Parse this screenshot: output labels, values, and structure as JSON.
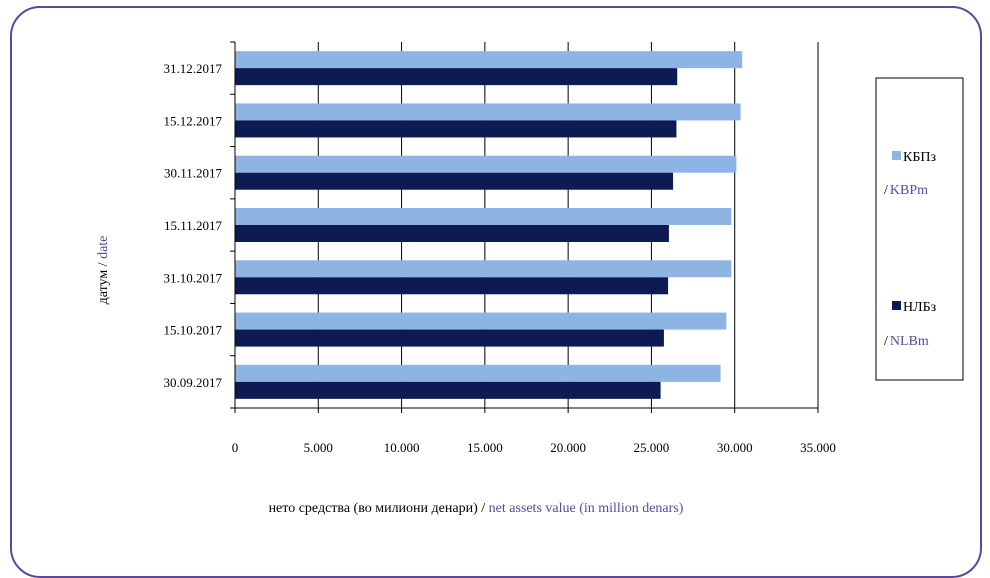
{
  "chart_data": {
    "type": "bar",
    "orientation": "horizontal",
    "categories": [
      "30.09.2017",
      "15.10.2017",
      "31.10.2017",
      "15.11.2017",
      "30.11.2017",
      "15.12.2017",
      "31.12.2017"
    ],
    "series": [
      {
        "name": "КБПз",
        "name_en": "KBPm",
        "color": "#8eb4e3",
        "values": [
          29150,
          29500,
          29800,
          29800,
          30100,
          30350,
          30450
        ]
      },
      {
        "name": "НЛБз",
        "name_en": "NLBm",
        "color": "#0d1b52",
        "values": [
          25550,
          25750,
          26000,
          26050,
          26300,
          26500,
          26550
        ]
      }
    ],
    "xlim": [
      0,
      35000
    ],
    "x_ticks": [
      0,
      5000,
      10000,
      15000,
      20000,
      25000,
      30000,
      35000
    ],
    "x_tick_labels": [
      "0",
      "5.000",
      "10.000",
      "15.000",
      "20.000",
      "25.000",
      "30.000",
      "35.000"
    ],
    "xlabel": "нето средства (во милиони денари)",
    "xlabel_sep": " / ",
    "xlabel_en": "net assets value (in million denars)",
    "ylabel": "датум",
    "ylabel_sep": " / ",
    "ylabel_en": "date",
    "grid": "vertical",
    "legend_position": "right"
  }
}
